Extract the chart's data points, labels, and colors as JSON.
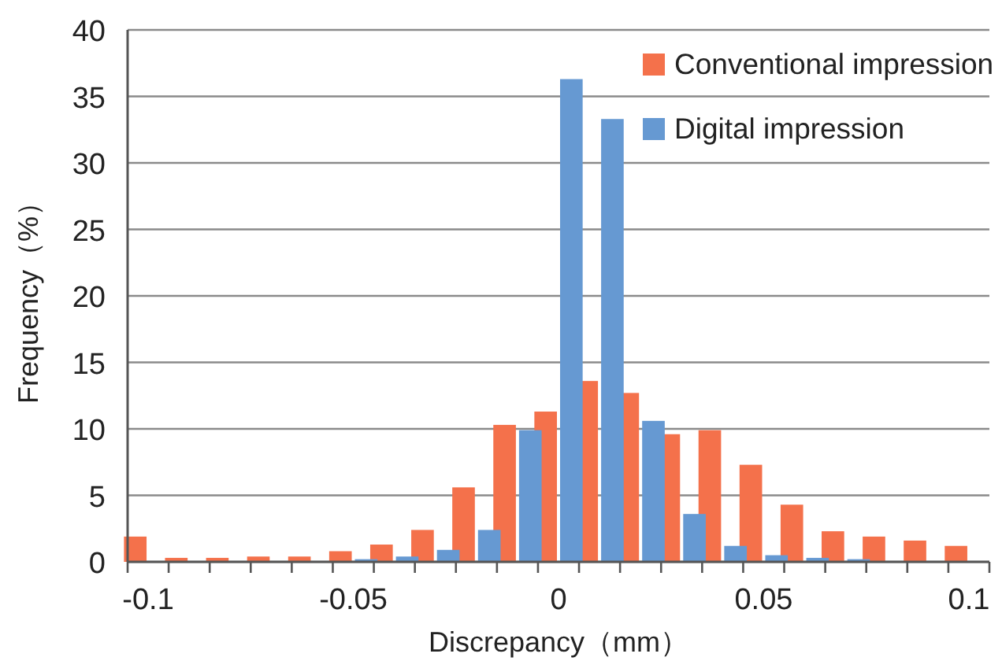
{
  "chart_data": {
    "type": "bar",
    "xlabel": "Discrepancy（mm）",
    "ylabel": "Frequency（%）",
    "categories": [
      "-0.1",
      null,
      null,
      null,
      null,
      "-0.05",
      null,
      null,
      null,
      null,
      "0",
      null,
      null,
      null,
      null,
      "0.05",
      null,
      null,
      null,
      null,
      "0.1"
    ],
    "series": [
      {
        "name": "Conventional impression",
        "color": "#f4714b",
        "values": [
          1.9,
          0.3,
          0.3,
          0.4,
          0.4,
          0.8,
          1.3,
          2.4,
          5.6,
          10.3,
          11.3,
          13.6,
          12.7,
          9.6,
          9.9,
          7.3,
          4.3,
          2.3,
          1.9,
          1.6,
          1.2
        ]
      },
      {
        "name": "Digital impression",
        "color": "#6699d2",
        "values": [
          0,
          0,
          0,
          0,
          0,
          0.2,
          0.4,
          0.9,
          2.4,
          9.9,
          36.3,
          33.3,
          10.6,
          3.6,
          1.2,
          0.5,
          0.3,
          0.2,
          0,
          0,
          0
        ]
      }
    ],
    "ylim": [
      0,
      40
    ],
    "yticks": [
      0,
      5,
      10,
      15,
      20,
      25,
      30,
      35,
      40
    ],
    "grid": "y",
    "legend": "top right"
  }
}
